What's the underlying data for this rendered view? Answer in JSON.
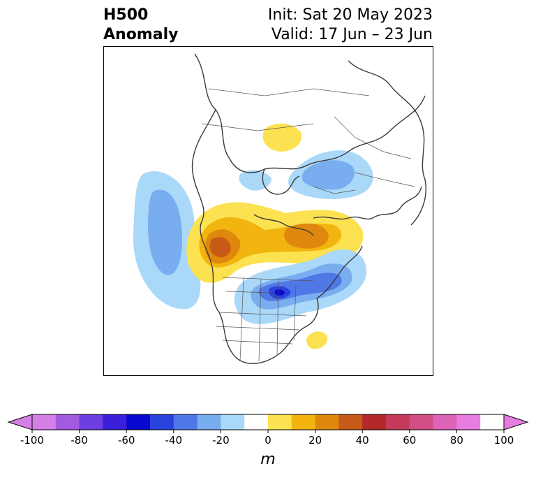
{
  "header": {
    "title_line1": "H500",
    "title_line2": "Anomaly",
    "init": "Init: Sat 20 May 2023",
    "valid": "Valid: 17 Jun – 23 Jun"
  },
  "colorbar": {
    "unit": "m",
    "tick_labels": [
      "-100",
      "-80",
      "-60",
      "-40",
      "-20",
      "0",
      "20",
      "40",
      "60",
      "80",
      "100"
    ],
    "min": -100,
    "max": 100,
    "step": 10,
    "extend": "both",
    "colors": [
      "#d47fe6",
      "#a25ae0",
      "#6d3ee0",
      "#3a1fdb",
      "#0808d0",
      "#2a42dc",
      "#4f77e6",
      "#78aef0",
      "#aad8f8",
      "#ffffff",
      "#fce150",
      "#f2b40e",
      "#e0880e",
      "#c75a18",
      "#b32828",
      "#c43a5a",
      "#d14e84",
      "#de64b8",
      "#e87ce0"
    ],
    "under_color": "#d47fe6",
    "over_color": "#e87ce0"
  },
  "map": {
    "projection": "polar stereographic, North America / Arctic",
    "features": [
      {
        "name": "pacific-negative-anomaly",
        "sign": "negative",
        "max_level": -30
      },
      {
        "name": "western-canada-positive-anomaly",
        "sign": "positive",
        "max_level": 50
      },
      {
        "name": "greenland-positive-anomaly",
        "sign": "positive",
        "max_level": 40
      },
      {
        "name": "great-lakes-negative-anomaly",
        "sign": "negative",
        "max_level": -60
      },
      {
        "name": "siberia-negative-anomaly",
        "sign": "negative",
        "max_level": -30
      },
      {
        "name": "ural-positive-anomaly",
        "sign": "positive",
        "max_level": 10
      },
      {
        "name": "atlantic-positive-anomaly",
        "sign": "positive",
        "max_level": 10
      }
    ]
  }
}
